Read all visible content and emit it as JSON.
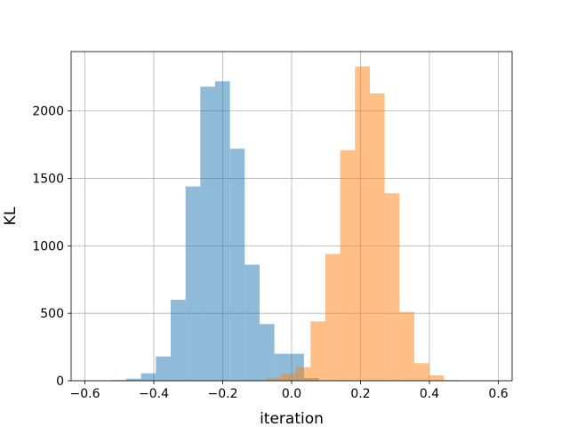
{
  "chart_data": {
    "type": "histogram",
    "title": "",
    "xlabel": "iteration",
    "ylabel": "KL",
    "xlim": [
      -0.64,
      0.64
    ],
    "ylim": [
      0,
      2440
    ],
    "grid": true,
    "x_ticks": [
      -0.6,
      -0.4,
      -0.2,
      0.0,
      0.2,
      0.4,
      0.6
    ],
    "x_tick_labels": [
      "−0.6",
      "−0.4",
      "−0.2",
      "0.0",
      "0.2",
      "0.4",
      "0.6"
    ],
    "y_ticks": [
      0,
      500,
      1000,
      1500,
      2000
    ],
    "y_tick_labels": [
      "0",
      "500",
      "1000",
      "1500",
      "2000"
    ],
    "bar_alpha": 0.5,
    "series": [
      {
        "color": "#1f77b4",
        "bin_edges": [
          -0.523,
          -0.48,
          -0.437,
          -0.394,
          -0.351,
          -0.308,
          -0.265,
          -0.222,
          -0.179,
          -0.136,
          -0.093,
          -0.05,
          -0.007,
          0.036,
          0.079
        ],
        "counts": [
          5,
          15,
          55,
          180,
          600,
          1440,
          2180,
          2220,
          1720,
          860,
          420,
          200,
          200,
          20
        ]
      },
      {
        "color": "#ff7f0e",
        "bin_edges": [
          -0.074,
          -0.031,
          0.012,
          0.055,
          0.098,
          0.141,
          0.184,
          0.227,
          0.27,
          0.313,
          0.356,
          0.399,
          0.442,
          0.485
        ],
        "counts": [
          20,
          50,
          100,
          440,
          940,
          1710,
          2330,
          2130,
          1390,
          510,
          130,
          40,
          5
        ]
      }
    ]
  }
}
